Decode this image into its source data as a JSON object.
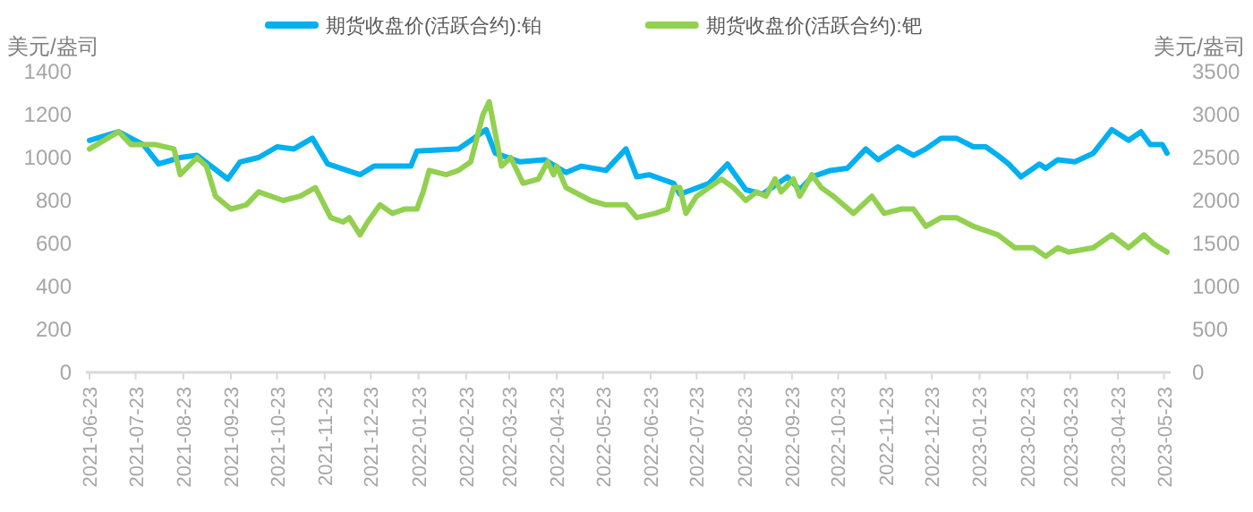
{
  "chart_data": {
    "type": "line",
    "ylabel": "美元/盎司",
    "y2label": "美元/盎司",
    "legend": "top",
    "line_style": "solid",
    "marker": "none",
    "grid": false,
    "xlim": [
      "2021-06-23",
      "2023-05-25"
    ],
    "xticks": [
      "2021-06-23",
      "2021-07-23",
      "2021-08-23",
      "2021-09-23",
      "2021-10-23",
      "2021-11-23",
      "2021-12-23",
      "2022-01-23",
      "2022-02-23",
      "2022-03-23",
      "2022-04-23",
      "2022-05-23",
      "2022-06-23",
      "2022-07-23",
      "2022-08-23",
      "2022-09-23",
      "2022-10-23",
      "2022-11-23",
      "2022-12-23",
      "2023-01-23",
      "2023-02-23",
      "2023-03-23",
      "2023-04-23",
      "2023-05-23"
    ],
    "ylim": [
      0,
      1400
    ],
    "yticks": [
      0,
      200,
      400,
      600,
      800,
      1000,
      1200,
      1400
    ],
    "y2lim": [
      0,
      3500
    ],
    "y2ticks": [
      0,
      500,
      1000,
      1500,
      2000,
      2500,
      3000,
      3500
    ],
    "series": [
      {
        "name": "期货收盘价(活跃合约):铂",
        "color": "#00b0f0",
        "x": [
          "2021-06-23",
          "2021-07-12",
          "2021-07-28",
          "2021-08-07",
          "2021-08-21",
          "2021-09-01",
          "2021-09-21",
          "2021-09-29",
          "2021-10-11",
          "2021-10-23",
          "2021-11-03",
          "2021-11-15",
          "2021-11-25",
          "2021-12-16",
          "2021-12-25",
          "2022-01-18",
          "2022-01-22",
          "2022-02-18",
          "2022-02-24",
          "2022-03-08",
          "2022-03-14",
          "2022-03-30",
          "2022-04-15",
          "2022-04-29",
          "2022-05-09",
          "2022-05-25",
          "2022-06-07",
          "2022-06-14",
          "2022-06-22",
          "2022-06-30",
          "2022-07-08",
          "2022-07-12",
          "2022-07-20",
          "2022-07-31",
          "2022-08-12",
          "2022-08-24",
          "2022-09-04",
          "2022-09-20",
          "2022-09-28",
          "2022-10-06",
          "2022-10-18",
          "2022-10-29",
          "2022-11-10",
          "2022-11-18",
          "2022-12-01",
          "2022-12-11",
          "2022-12-19",
          "2022-12-29",
          "2023-01-08",
          "2023-01-19",
          "2023-01-27",
          "2023-02-04",
          "2023-02-11",
          "2023-02-19",
          "2023-03-03",
          "2023-03-07",
          "2023-03-15",
          "2023-03-26",
          "2023-04-07",
          "2023-04-19",
          "2023-04-30",
          "2023-05-08",
          "2023-05-14",
          "2023-05-22",
          "2023-05-25"
        ],
        "values": [
          1080,
          1120,
          1060,
          970,
          1000,
          1010,
          900,
          980,
          1000,
          1050,
          1040,
          1090,
          970,
          920,
          960,
          960,
          1030,
          1040,
          1070,
          1130,
          1020,
          980,
          990,
          930,
          960,
          940,
          1040,
          910,
          920,
          900,
          880,
          830,
          850,
          880,
          970,
          850,
          830,
          910,
          850,
          910,
          940,
          950,
          1040,
          990,
          1050,
          1010,
          1040,
          1090,
          1090,
          1050,
          1050,
          1010,
          970,
          910,
          970,
          950,
          990,
          980,
          1020,
          1130,
          1080,
          1120,
          1060,
          1060,
          1020
        ]
      },
      {
        "name": "期货收盘价(活跃合约):钯",
        "color": "#92d050",
        "axis": "y2",
        "x": [
          "2021-06-23",
          "2021-07-12",
          "2021-07-20",
          "2021-08-05",
          "2021-08-17",
          "2021-08-21",
          "2021-09-01",
          "2021-09-07",
          "2021-09-13",
          "2021-09-23",
          "2021-10-03",
          "2021-10-11",
          "2021-10-27",
          "2021-11-07",
          "2021-11-17",
          "2021-11-27",
          "2021-12-05",
          "2021-12-09",
          "2021-12-16",
          "2021-12-21",
          "2021-12-29",
          "2022-01-06",
          "2022-01-14",
          "2022-01-22",
          "2022-01-26",
          "2022-01-30",
          "2022-02-10",
          "2022-02-18",
          "2022-02-26",
          "2022-03-06",
          "2022-03-10",
          "2022-03-18",
          "2022-03-24",
          "2022-04-01",
          "2022-04-11",
          "2022-04-17",
          "2022-04-21",
          "2022-04-23",
          "2022-04-29",
          "2022-05-15",
          "2022-05-25",
          "2022-06-07",
          "2022-06-14",
          "2022-06-26",
          "2022-07-04",
          "2022-07-08",
          "2022-07-12",
          "2022-07-16",
          "2022-07-23",
          "2022-07-31",
          "2022-08-08",
          "2022-08-16",
          "2022-08-24",
          "2022-08-31",
          "2022-09-06",
          "2022-09-12",
          "2022-09-16",
          "2022-09-24",
          "2022-09-28",
          "2022-10-06",
          "2022-10-12",
          "2022-10-20",
          "2022-11-02",
          "2022-11-14",
          "2022-11-22",
          "2022-12-03",
          "2022-12-11",
          "2022-12-19",
          "2022-12-29",
          "2023-01-08",
          "2023-01-19",
          "2023-02-04",
          "2023-02-15",
          "2023-02-27",
          "2023-03-07",
          "2023-03-15",
          "2023-03-22",
          "2023-04-07",
          "2023-04-19",
          "2023-04-30",
          "2023-05-10",
          "2023-05-16",
          "2023-05-25"
        ],
        "values": [
          2600,
          2800,
          2650,
          2650,
          2600,
          2300,
          2500,
          2400,
          2050,
          1900,
          1950,
          2100,
          2000,
          2050,
          2150,
          1800,
          1750,
          1800,
          1600,
          1750,
          1950,
          1850,
          1900,
          1900,
          2100,
          2350,
          2300,
          2350,
          2450,
          3000,
          3150,
          2400,
          2500,
          2200,
          2250,
          2450,
          2300,
          2400,
          2150,
          2000,
          1950,
          1950,
          1800,
          1850,
          1900,
          2150,
          2150,
          1850,
          2050,
          2150,
          2250,
          2150,
          2000,
          2100,
          2050,
          2250,
          2100,
          2250,
          2050,
          2300,
          2150,
          2050,
          1850,
          2050,
          1850,
          1900,
          1900,
          1700,
          1800,
          1800,
          1700,
          1600,
          1450,
          1450,
          1350,
          1450,
          1400,
          1450,
          1600,
          1450,
          1600,
          1500,
          1400
        ]
      }
    ]
  }
}
